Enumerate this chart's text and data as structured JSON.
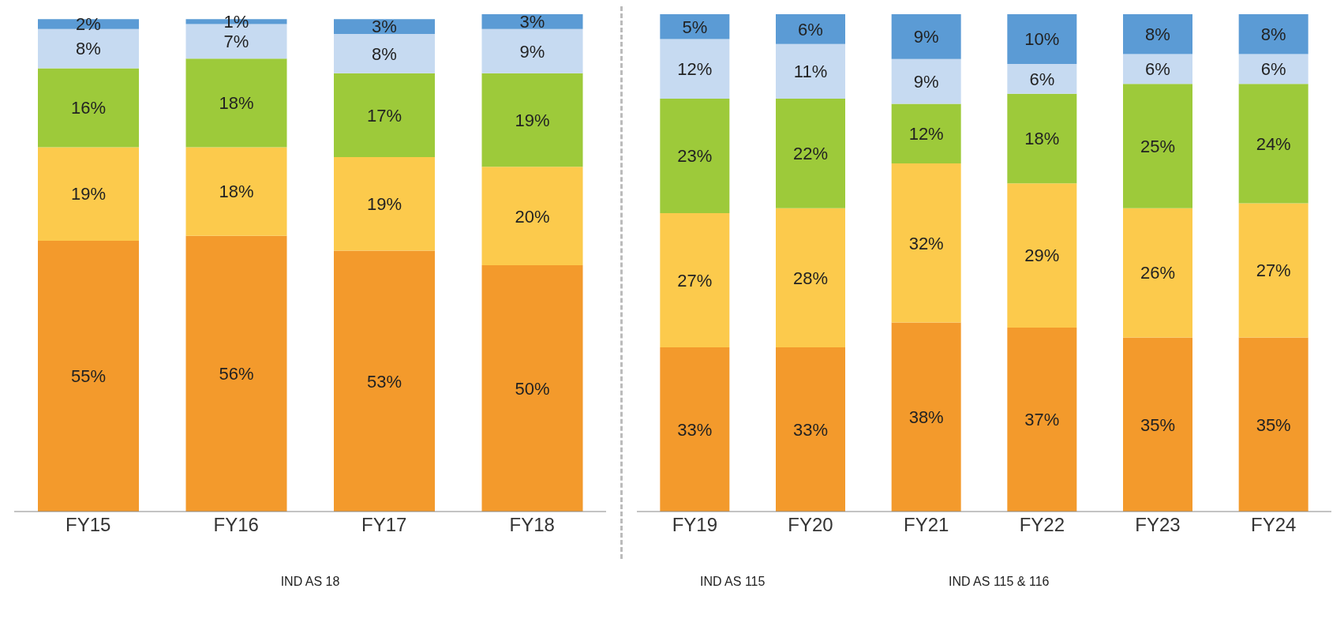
{
  "chart_data": [
    {
      "type": "bar",
      "stacked": true,
      "xlabel": "IND AS 18",
      "categories": [
        "FY15",
        "FY16",
        "FY17",
        "FY18"
      ],
      "tick_labels": "x",
      "series": [
        {
          "color": "#f39a2c",
          "values": [
            55,
            56,
            53,
            50
          ],
          "value_labels": [
            "55%",
            "56%",
            "53%",
            "50%"
          ]
        },
        {
          "color": "#fcca4c",
          "values": [
            19,
            18,
            19,
            20
          ],
          "value_labels": [
            "19%",
            "18%",
            "19%",
            "20%"
          ]
        },
        {
          "color": "#9dca3a",
          "values": [
            16,
            18,
            17,
            19
          ],
          "value_labels": [
            "16%",
            "18%",
            "17%",
            "19%"
          ]
        },
        {
          "color": "#c6daf1",
          "values": [
            8,
            7,
            8,
            9
          ],
          "value_labels": [
            "8%",
            "7%",
            "8%",
            "9%"
          ]
        },
        {
          "color": "#5b9bd5",
          "values": [
            2,
            1,
            3,
            3
          ],
          "value_labels": [
            "2%",
            "1%",
            "3%",
            "3%"
          ]
        }
      ]
    },
    {
      "type": "bar",
      "stacked": true,
      "annotations": [
        "IND AS 115",
        "IND AS 115 & 116"
      ],
      "categories": [
        "FY19",
        "FY20",
        "FY21",
        "FY22",
        "FY23",
        "FY24"
      ],
      "tick_labels": "x",
      "series": [
        {
          "color": "#f39a2c",
          "values": [
            33,
            33,
            38,
            37,
            35,
            35
          ],
          "value_labels": [
            "33%",
            "33%",
            "38%",
            "37%",
            "35%",
            "35%"
          ]
        },
        {
          "color": "#fcca4c",
          "values": [
            27,
            28,
            32,
            29,
            26,
            27
          ],
          "value_labels": [
            "27%",
            "28%",
            "32%",
            "29%",
            "26%",
            "27%"
          ]
        },
        {
          "color": "#9dca3a",
          "values": [
            23,
            22,
            12,
            18,
            25,
            24
          ],
          "value_labels": [
            "23%",
            "22%",
            "12%",
            "18%",
            "25%",
            "24%"
          ]
        },
        {
          "color": "#c6daf1",
          "values": [
            12,
            11,
            9,
            6,
            6,
            6
          ],
          "value_labels": [
            "12%",
            "11%",
            "9%",
            "6%",
            "6%",
            "6%"
          ]
        },
        {
          "color": "#5b9bd5",
          "values": [
            5,
            6,
            9,
            10,
            8,
            8
          ],
          "value_labels": [
            "5%",
            "6%",
            "9%",
            "10%",
            "8%",
            "8%"
          ]
        }
      ]
    }
  ]
}
